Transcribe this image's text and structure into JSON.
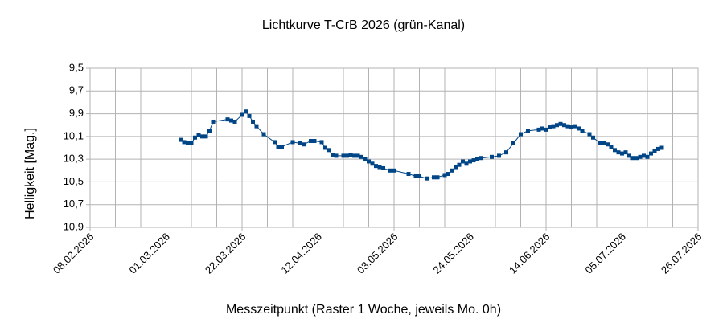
{
  "chart_data": {
    "type": "line",
    "title": "Lichtkurve T-CrB 2026 (grün-Kanal)",
    "xlabel": "Messzeitpunkt (Raster 1 Woche, jeweils Mo. 0h)",
    "ylabel": "Helligkeit [Mag.]",
    "xlim": [
      "08.02.2026",
      "26.07.2026"
    ],
    "xticks": [
      "08.02.2026",
      "01.03.2026",
      "22.03.2026",
      "12.04.2026",
      "03.05.2026",
      "24.05.2026",
      "14.06.2026",
      "05.07.2026",
      "26.07.2026"
    ],
    "xminorticks": [
      "08.02.2026",
      "15.02.2026",
      "22.02.2026",
      "01.03.2026",
      "08.03.2026",
      "15.03.2026",
      "22.03.2026",
      "29.03.2026",
      "05.04.2026",
      "12.04.2026",
      "19.04.2026",
      "26.04.2026",
      "03.05.2026",
      "10.05.2026",
      "17.05.2026",
      "24.05.2026",
      "31.05.2026",
      "07.06.2026",
      "14.06.2026",
      "21.06.2026",
      "28.06.2026",
      "05.07.2026",
      "12.07.2026",
      "19.07.2026",
      "26.07.2026"
    ],
    "ylim": [
      10.9,
      9.5
    ],
    "yticks": [
      {
        "value": 9.5,
        "label": "9,5"
      },
      {
        "value": 9.7,
        "label": "9,7"
      },
      {
        "value": 9.9,
        "label": "9,9"
      },
      {
        "value": 10.1,
        "label": "10,1"
      },
      {
        "value": 10.3,
        "label": "10,3"
      },
      {
        "value": 10.5,
        "label": "10,5"
      },
      {
        "value": 10.7,
        "label": "10,7"
      },
      {
        "value": 10.9,
        "label": "10,9"
      }
    ],
    "grid": true,
    "series": [
      {
        "color": "#004586",
        "x": [
          "05.03.2026",
          "06.03.2026",
          "07.03.2026",
          "08.03.2026",
          "09.03.2026",
          "10.03.2026",
          "11.03.2026",
          "12.03.2026",
          "13.03.2026",
          "14.03.2026",
          "18.03.2026",
          "19.03.2026",
          "20.03.2026",
          "22.03.2026",
          "23.03.2026",
          "24.03.2026",
          "25.03.2026",
          "26.03.2026",
          "28.03.2026",
          "31.03.2026",
          "01.04.2026",
          "02.04.2026",
          "05.04.2026",
          "07.04.2026",
          "08.04.2026",
          "10.04.2026",
          "11.04.2026",
          "13.04.2026",
          "14.04.2026",
          "15.04.2026",
          "16.04.2026",
          "17.04.2026",
          "19.04.2026",
          "20.04.2026",
          "21.04.2026",
          "22.04.2026",
          "23.04.2026",
          "24.04.2026",
          "25.04.2026",
          "26.04.2026",
          "27.04.2026",
          "28.04.2026",
          "29.04.2026",
          "30.04.2026",
          "02.05.2026",
          "03.05.2026",
          "07.05.2026",
          "09.05.2026",
          "10.05.2026",
          "12.05.2026",
          "14.05.2026",
          "15.05.2026",
          "17.05.2026",
          "18.05.2026",
          "19.05.2026",
          "20.05.2026",
          "21.05.2026",
          "22.05.2026",
          "23.05.2026",
          "24.05.2026",
          "25.05.2026",
          "26.05.2026",
          "27.05.2026",
          "30.05.2026",
          "01.06.2026",
          "03.06.2026",
          "05.06.2026",
          "07.06.2026",
          "09.06.2026",
          "12.06.2026",
          "13.06.2026",
          "14.06.2026",
          "15.06.2026",
          "16.06.2026",
          "17.06.2026",
          "18.06.2026",
          "19.06.2026",
          "20.06.2026",
          "21.06.2026",
          "22.06.2026",
          "23.06.2026",
          "24.06.2026",
          "26.06.2026",
          "27.06.2026",
          "29.06.2026",
          "30.06.2026",
          "01.07.2026",
          "02.07.2026",
          "03.07.2026",
          "04.07.2026",
          "05.07.2026",
          "06.07.2026",
          "07.07.2026",
          "08.07.2026",
          "09.07.2026",
          "10.07.2026",
          "11.07.2026",
          "12.07.2026",
          "13.07.2026",
          "14.07.2026",
          "15.07.2026",
          "16.07.2026"
        ],
        "values": [
          10.13,
          10.15,
          10.16,
          10.16,
          10.11,
          10.09,
          10.1,
          10.1,
          10.05,
          9.97,
          9.95,
          9.96,
          9.97,
          9.91,
          9.88,
          9.92,
          9.97,
          10.01,
          10.08,
          10.15,
          10.19,
          10.19,
          10.15,
          10.16,
          10.17,
          10.14,
          10.14,
          10.15,
          10.2,
          10.22,
          10.26,
          10.27,
          10.27,
          10.27,
          10.26,
          10.27,
          10.27,
          10.28,
          10.3,
          10.32,
          10.34,
          10.36,
          10.37,
          10.38,
          10.4,
          10.4,
          10.43,
          10.45,
          10.45,
          10.47,
          10.46,
          10.46,
          10.44,
          10.43,
          10.4,
          10.37,
          10.35,
          10.32,
          10.34,
          10.32,
          10.31,
          10.3,
          10.29,
          10.28,
          10.27,
          10.24,
          10.16,
          10.08,
          10.05,
          10.04,
          10.03,
          10.04,
          10.02,
          10.01,
          10.0,
          9.99,
          10.0,
          10.01,
          10.02,
          10.01,
          10.03,
          10.05,
          10.08,
          10.11,
          10.16,
          10.16,
          10.17,
          10.19,
          10.22,
          10.24,
          10.25,
          10.24,
          10.27,
          10.29,
          10.29,
          10.28,
          10.27,
          10.28,
          10.25,
          10.23,
          10.21,
          10.2
        ]
      }
    ]
  }
}
